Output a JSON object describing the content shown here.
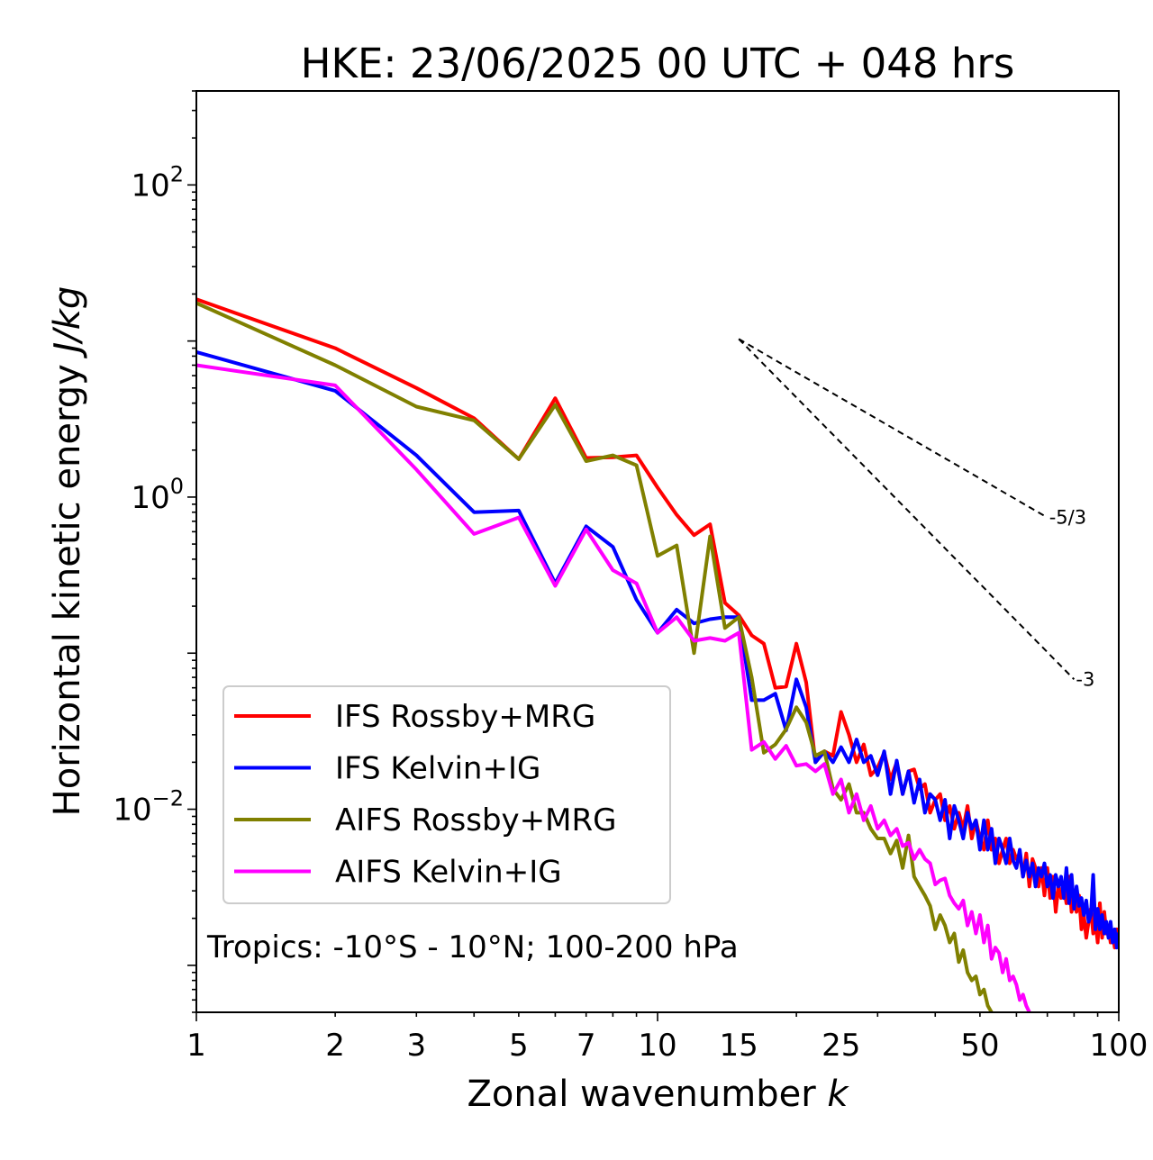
{
  "chart_data": {
    "type": "line",
    "title": "HKE: 23/06/2025 00 UTC + 048 hrs",
    "xlabel_text": "Zonal wavenumber ",
    "xlabel_var": "k",
    "ylabel_text": "Horizontal kinetic energy ",
    "ylabel_var": "J/kg",
    "x_scale": "log",
    "y_scale": "log",
    "xlim": [
      1,
      100
    ],
    "ylim": [
      0.0005,
      400
    ],
    "x_ticks": [
      {
        "value": 1,
        "label": "1"
      },
      {
        "value": 2,
        "label": "2"
      },
      {
        "value": 3,
        "label": "3"
      },
      {
        "value": 5,
        "label": "5"
      },
      {
        "value": 7,
        "label": "7"
      },
      {
        "value": 10,
        "label": "10"
      },
      {
        "value": 15,
        "label": "15"
      },
      {
        "value": 25,
        "label": "25"
      },
      {
        "value": 50,
        "label": "50"
      },
      {
        "value": 100,
        "label": "100"
      }
    ],
    "y_ticks": [
      {
        "value": 100,
        "base": "10",
        "exp": "2"
      },
      {
        "value": 1,
        "base": "10",
        "exp": "0"
      },
      {
        "value": 0.01,
        "base": "10",
        "exp": "−2"
      }
    ],
    "grid": false,
    "legend_position": "lower-left",
    "annotation": "Tropics: -10°S - 10°N; 100-200 hPa",
    "reference_slopes": [
      {
        "label": "-5/3",
        "x": [
          15,
          70
        ],
        "y": [
          10.3,
          0.74
        ]
      },
      {
        "label": "-3",
        "x": [
          15,
          80
        ],
        "y": [
          10.3,
          0.068
        ]
      }
    ],
    "series": [
      {
        "name": "IFS Rossby+MRG",
        "color": "#ff0000",
        "x": [
          1,
          2,
          3,
          4,
          5,
          6,
          7,
          8,
          9,
          10,
          11,
          12,
          13,
          14,
          15,
          16,
          17,
          18,
          19,
          20,
          21,
          22,
          23,
          24,
          25,
          26,
          27,
          28,
          29,
          30,
          31,
          32,
          33,
          34,
          35,
          36,
          37,
          38,
          39,
          40,
          41,
          42,
          43,
          44,
          45,
          46,
          47,
          48,
          49,
          50,
          51,
          52,
          53,
          54,
          55,
          56,
          57,
          58,
          59,
          60,
          61,
          62,
          63,
          64,
          65,
          66,
          67,
          68,
          69,
          70,
          71,
          72,
          73,
          74,
          75,
          76,
          77,
          78,
          79,
          80,
          81,
          82,
          83,
          84,
          85,
          86,
          87,
          88,
          89,
          90,
          91,
          92,
          93,
          94,
          95,
          96,
          97,
          98,
          99,
          100
        ],
        "y": [
          18.5,
          9.0,
          5.0,
          3.2,
          1.75,
          4.3,
          1.78,
          1.8,
          1.85,
          1.15,
          0.77,
          0.57,
          0.67,
          0.21,
          0.175,
          0.13,
          0.115,
          0.06,
          0.061,
          0.115,
          0.065,
          0.02,
          0.0235,
          0.022,
          0.042,
          0.03,
          0.02,
          0.026,
          0.0165,
          0.0185,
          0.023,
          0.0155,
          0.02,
          0.0125,
          0.0175,
          0.018,
          0.0135,
          0.0145,
          0.0095,
          0.0115,
          0.0125,
          0.0085,
          0.0105,
          0.0075,
          0.0095,
          0.0075,
          0.0105,
          0.0065,
          0.0085,
          0.0065,
          0.0055,
          0.0085,
          0.0055,
          0.0065,
          0.0045,
          0.0055,
          0.0065,
          0.0045,
          0.0055,
          0.0048,
          0.0052,
          0.0037,
          0.0052,
          0.0032,
          0.0048,
          0.0042,
          0.0032,
          0.0042,
          0.0028,
          0.0042,
          0.0027,
          0.0037,
          0.0022,
          0.0032,
          0.0027,
          0.0032,
          0.0025,
          0.0037,
          0.0022,
          0.0027,
          0.0022,
          0.0028,
          0.0017,
          0.0021,
          0.0015,
          0.0019,
          0.0023,
          0.0016,
          0.0019,
          0.0014,
          0.0025,
          0.0015,
          0.0022,
          0.0016,
          0.0018,
          0.0014,
          0.0016,
          0.0013,
          0.0017,
          0.0014
        ]
      },
      {
        "name": "IFS Kelvin+IG",
        "color": "#0000ff",
        "x": [
          1,
          2,
          3,
          4,
          5,
          6,
          7,
          8,
          9,
          10,
          11,
          12,
          13,
          14,
          15,
          16,
          17,
          18,
          19,
          20,
          21,
          22,
          23,
          24,
          25,
          26,
          27,
          28,
          29,
          30,
          31,
          32,
          33,
          34,
          35,
          36,
          37,
          38,
          39,
          40,
          41,
          42,
          43,
          44,
          45,
          46,
          47,
          48,
          49,
          50,
          51,
          52,
          53,
          54,
          55,
          56,
          57,
          58,
          59,
          60,
          61,
          62,
          63,
          64,
          65,
          66,
          67,
          68,
          69,
          70,
          71,
          72,
          73,
          74,
          75,
          76,
          77,
          78,
          79,
          80,
          81,
          82,
          83,
          84,
          85,
          86,
          87,
          88,
          89,
          90,
          91,
          92,
          93,
          94,
          95,
          96,
          97,
          98,
          99,
          100
        ],
        "y": [
          8.5,
          4.8,
          1.85,
          0.8,
          0.82,
          0.28,
          0.65,
          0.48,
          0.22,
          0.135,
          0.19,
          0.155,
          0.165,
          0.17,
          0.17,
          0.05,
          0.05,
          0.055,
          0.032,
          0.068,
          0.045,
          0.02,
          0.0235,
          0.02,
          0.025,
          0.02,
          0.028,
          0.02,
          0.022,
          0.0165,
          0.0235,
          0.0125,
          0.0205,
          0.0125,
          0.0175,
          0.011,
          0.0155,
          0.0095,
          0.0125,
          0.0115,
          0.0085,
          0.0115,
          0.0065,
          0.0105,
          0.0085,
          0.0065,
          0.0095,
          0.0075,
          0.0085,
          0.0055,
          0.0085,
          0.0055,
          0.0075,
          0.0045,
          0.0065,
          0.0055,
          0.0045,
          0.0065,
          0.0047,
          0.0042,
          0.0055,
          0.0037,
          0.0047,
          0.0037,
          0.0045,
          0.0032,
          0.0042,
          0.0037,
          0.0045,
          0.0032,
          0.0038,
          0.0027,
          0.0038,
          0.0032,
          0.0037,
          0.0027,
          0.0042,
          0.0025,
          0.0038,
          0.0023,
          0.0032,
          0.0024,
          0.0027,
          0.0021,
          0.0026,
          0.0019,
          0.0021,
          0.0038,
          0.0017,
          0.0023,
          0.0017,
          0.0021,
          0.0016,
          0.0019,
          0.0015,
          0.0019,
          0.0014,
          0.0017,
          0.0013,
          0.0016
        ]
      },
      {
        "name": "AIFS Rossby+MRG",
        "color": "#808000",
        "x": [
          1,
          2,
          3,
          4,
          5,
          6,
          7,
          8,
          9,
          10,
          11,
          12,
          13,
          14,
          15,
          16,
          17,
          18,
          19,
          20,
          21,
          22,
          23,
          24,
          25,
          26,
          27,
          28,
          29,
          30,
          31,
          32,
          33,
          34,
          35,
          36,
          37,
          38,
          39,
          40,
          41,
          42,
          43,
          44,
          45,
          46,
          47,
          48,
          49,
          50,
          51,
          52,
          53,
          54
        ],
        "y": [
          17.5,
          7.0,
          3.8,
          3.1,
          1.75,
          3.9,
          1.7,
          1.85,
          1.6,
          0.42,
          0.49,
          0.1,
          0.56,
          0.145,
          0.17,
          0.07,
          0.023,
          0.026,
          0.0325,
          0.045,
          0.036,
          0.022,
          0.0235,
          0.0135,
          0.0115,
          0.0145,
          0.0095,
          0.0095,
          0.0075,
          0.0065,
          0.0065,
          0.0052,
          0.0063,
          0.0042,
          0.0068,
          0.0037,
          0.0032,
          0.0028,
          0.0024,
          0.0017,
          0.0021,
          0.0018,
          0.0014,
          0.0016,
          0.00105,
          0.00125,
          0.0009,
          0.0008,
          0.00085,
          0.00065,
          0.0007,
          0.00055,
          0.0005,
          0.0004
        ]
      },
      {
        "name": "AIFS Kelvin+IG",
        "color": "#ff00ff",
        "x": [
          1,
          2,
          3,
          4,
          5,
          6,
          7,
          8,
          9,
          10,
          11,
          12,
          13,
          14,
          15,
          16,
          17,
          18,
          19,
          20,
          21,
          22,
          23,
          24,
          25,
          26,
          27,
          28,
          29,
          30,
          31,
          32,
          33,
          34,
          35,
          36,
          37,
          38,
          39,
          40,
          41,
          42,
          43,
          44,
          45,
          46,
          47,
          48,
          49,
          50,
          51,
          52,
          53,
          54,
          55,
          56,
          57,
          58,
          59,
          60,
          61,
          62,
          63,
          64,
          65,
          66,
          67,
          68,
          69
        ],
        "y": [
          7.0,
          5.2,
          1.5,
          0.58,
          0.74,
          0.27,
          0.62,
          0.34,
          0.28,
          0.135,
          0.17,
          0.12,
          0.125,
          0.12,
          0.135,
          0.024,
          0.027,
          0.021,
          0.0255,
          0.019,
          0.0195,
          0.0175,
          0.0195,
          0.0125,
          0.0155,
          0.0095,
          0.0125,
          0.0085,
          0.0105,
          0.0075,
          0.0085,
          0.0068,
          0.0075,
          0.0058,
          0.0061,
          0.0048,
          0.0055,
          0.0048,
          0.0045,
          0.0033,
          0.0035,
          0.0036,
          0.0028,
          0.0025,
          0.0023,
          0.0026,
          0.0018,
          0.0022,
          0.0016,
          0.0021,
          0.0014,
          0.0018,
          0.0011,
          0.0013,
          0.0012,
          0.0009,
          0.0011,
          0.0008,
          0.00085,
          0.00075,
          0.0006,
          0.00065,
          0.00055,
          0.0005,
          0.00042,
          0.00045,
          0.0004,
          0.00035,
          0.00033
        ]
      }
    ]
  }
}
